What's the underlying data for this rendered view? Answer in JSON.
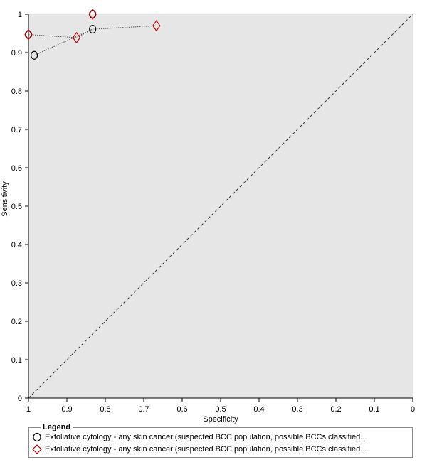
{
  "chart_data": {
    "type": "scatter",
    "xlabel": "Specificity",
    "ylabel": "Sensitivity",
    "xlim": [
      1,
      0
    ],
    "ylim": [
      0,
      1
    ],
    "x_ticks": [
      "1",
      "0.9",
      "0.8",
      "0.7",
      "0.6",
      "0.5",
      "0.4",
      "0.3",
      "0.2",
      "0.1",
      "0"
    ],
    "y_ticks": [
      "0",
      "0.1",
      "0.2",
      "0.3",
      "0.4",
      "0.5",
      "0.6",
      "0.7",
      "0.8",
      "0.9",
      "1"
    ],
    "diagonal_reference_line": true,
    "background_color": "#e6e6e6",
    "line_color": "#555555",
    "series": [
      {
        "marker": "circle",
        "color": "#000000",
        "points": [
          {
            "x": 0.985,
            "y": 0.893
          },
          {
            "x": 0.833,
            "y": 0.961
          },
          {
            "x": 0.833,
            "y": 1.0
          },
          {
            "x": 1.0,
            "y": 0.947
          }
        ],
        "connected_line": [
          [
            0.985,
            0.893
          ],
          [
            0.833,
            0.961
          ]
        ]
      },
      {
        "marker": "diamond",
        "color": "#c00000",
        "points": [
          {
            "x": 0.875,
            "y": 0.939
          },
          {
            "x": 0.667,
            "y": 0.97
          },
          {
            "x": 0.833,
            "y": 1.0
          },
          {
            "x": 1.0,
            "y": 0.947
          }
        ],
        "connected_line": [
          [
            1.0,
            0.947
          ],
          [
            0.875,
            0.939
          ],
          [
            0.833,
            0.961
          ],
          [
            0.667,
            0.97
          ]
        ]
      }
    ]
  },
  "legend": {
    "title": "Legend",
    "entries": [
      {
        "label": "Exfoliative cytology - any skin cancer (suspected BCC population, possible BCCs classified...",
        "marker": "circle-icon",
        "color": "#000000"
      },
      {
        "label": "Exfoliative cytology - any skin cancer (suspected BCC population, possible BCCs classified...",
        "marker": "diamond-icon",
        "color": "#c00000"
      }
    ]
  }
}
